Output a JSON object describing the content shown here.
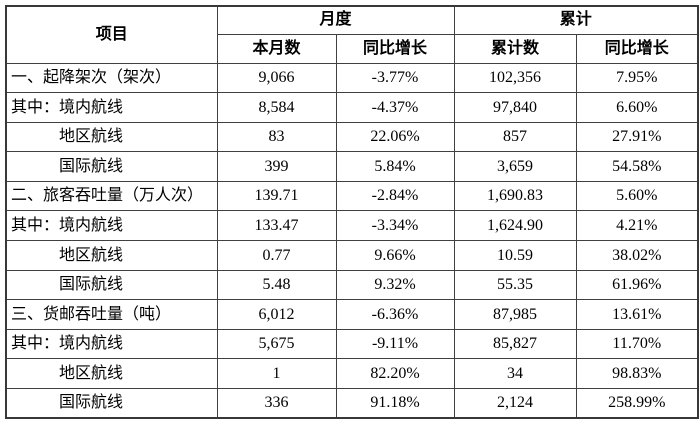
{
  "table": {
    "header": {
      "item": "项目",
      "monthly_group": "月度",
      "cumulative_group": "累计",
      "col_current_month": "本月数",
      "col_monthly_yoy": "同比增长",
      "col_cumulative": "累计数",
      "col_cumulative_yoy": "同比增长"
    },
    "rows": [
      {
        "label": "一、起降架次（架次）",
        "month": "9,066",
        "month_yoy": "-3.77%",
        "cum": "102,356",
        "cum_yoy": "7.95%"
      },
      {
        "label": "其中：境内航线",
        "month": "8,584",
        "month_yoy": "-4.37%",
        "cum": "97,840",
        "cum_yoy": "6.60%"
      },
      {
        "label": "地区航线",
        "month": "83",
        "month_yoy": "22.06%",
        "cum": "857",
        "cum_yoy": "27.91%"
      },
      {
        "label": "国际航线",
        "month": "399",
        "month_yoy": "5.84%",
        "cum": "3,659",
        "cum_yoy": "54.58%"
      },
      {
        "label": "二、旅客吞吐量（万人次）",
        "month": "139.71",
        "month_yoy": "-2.84%",
        "cum": "1,690.83",
        "cum_yoy": "5.60%"
      },
      {
        "label": "其中：境内航线",
        "month": "133.47",
        "month_yoy": "-3.34%",
        "cum": "1,624.90",
        "cum_yoy": "4.21%"
      },
      {
        "label": "地区航线",
        "month": "0.77",
        "month_yoy": "9.66%",
        "cum": "10.59",
        "cum_yoy": "38.02%"
      },
      {
        "label": "国际航线",
        "month": "5.48",
        "month_yoy": "9.32%",
        "cum": "55.35",
        "cum_yoy": "61.96%"
      },
      {
        "label": "三、货邮吞吐量（吨）",
        "month": "6,012",
        "month_yoy": "-6.36%",
        "cum": "87,985",
        "cum_yoy": "13.61%"
      },
      {
        "label": "其中：境内航线",
        "month": "5,675",
        "month_yoy": "-9.11%",
        "cum": "85,827",
        "cum_yoy": "11.70%"
      },
      {
        "label": "地区航线",
        "month": "1",
        "month_yoy": "82.20%",
        "cum": "34",
        "cum_yoy": "98.83%"
      },
      {
        "label": "国际航线",
        "month": "336",
        "month_yoy": "91.18%",
        "cum": "2,124",
        "cum_yoy": "258.99%"
      }
    ]
  },
  "colors": {
    "text": "#000000",
    "border": "#404040",
    "background": "#ffffff"
  }
}
